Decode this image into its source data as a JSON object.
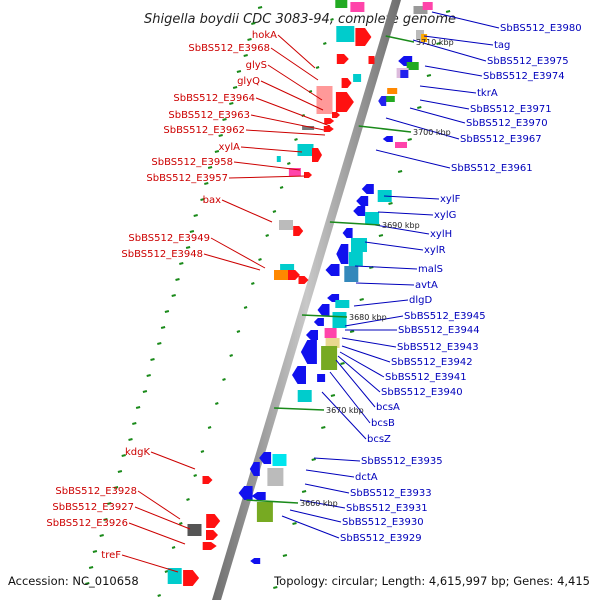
{
  "title": "Shigella boydii CDC 3083-94, complete genome",
  "accession": "Accession: NC_010658",
  "summary": "Topology: circular; Length: 4,615,997 bp; Genes: 4,415",
  "colors": {
    "left_label": "#cc0000",
    "right_label": "#0000bb",
    "axis": "#888888",
    "tick": "#1a8a1a"
  },
  "kbp_marks": [
    "3710 kbp",
    "3700 kbp",
    "3690 kbp",
    "3680 kbp",
    "3670 kbp",
    "3660 kbp"
  ],
  "left_labels": [
    "hokA",
    "SbBS512_E3968",
    "glyS",
    "glyQ",
    "SbBS512_E3964",
    "SbBS512_E3963",
    "SbBS512_E3962",
    "xylA",
    "SbBS512_E3958",
    "SbBS512_E3957",
    "bax",
    "SbBS512_E3949",
    "SbBS512_E3948",
    "kdgK",
    "SbBS512_E3928",
    "SbBS512_E3927",
    "SbBS512_E3926",
    "treF"
  ],
  "right_labels": [
    "SbBS512_E3980",
    "tag",
    "SbBS512_E3975",
    "SbBS512_E3974",
    "tkrA",
    "SbBS512_E3971",
    "SbBS512_E3970",
    "SbBS512_E3967",
    "SbBS512_E3961",
    "xylF",
    "xylG",
    "xylH",
    "xylR",
    "malS",
    "avtA",
    "dlgD",
    "SbBS512_E3945",
    "SbBS512_E3944",
    "SbBS512_E3943",
    "SbBS512_E3942",
    "SbBS512_E3941",
    "SbBS512_E3940",
    "bcsA",
    "bcsB",
    "bcsZ",
    "SbBS512_E3935",
    "dctA",
    "SbBS512_E3933",
    "SbBS512_E3931",
    "SbBS512_E3930",
    "SbBS512_E3929"
  ]
}
